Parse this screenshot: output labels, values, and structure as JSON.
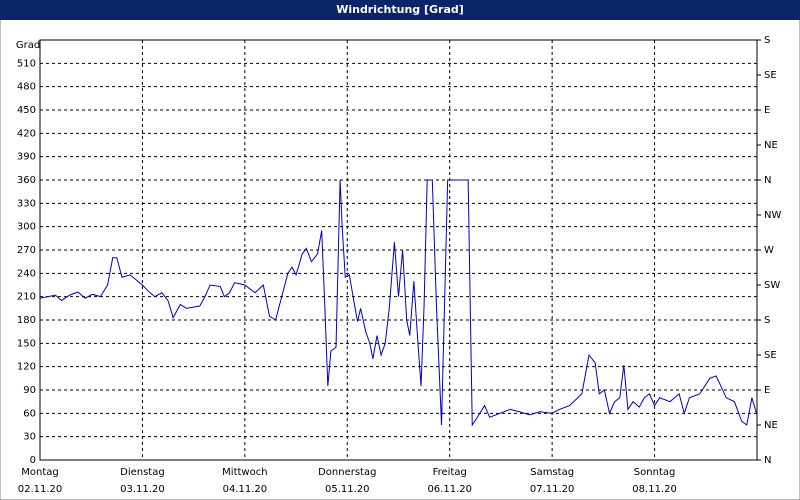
{
  "chart_data": {
    "type": "line",
    "title": "Windrichtung [Grad]",
    "y_label": "Grad",
    "xlim": [
      0,
      7
    ],
    "ylim": [
      0,
      540
    ],
    "y2lim": [
      0,
      540
    ],
    "grid": true,
    "xticks": [
      {
        "value": 0,
        "label": "Montag"
      },
      {
        "value": 1,
        "label": "Dienstag"
      },
      {
        "value": 2,
        "label": "Mittwoch"
      },
      {
        "value": 3,
        "label": "Donnerstag"
      },
      {
        "value": 4,
        "label": "Freitag"
      },
      {
        "value": 5,
        "label": "Samstag"
      },
      {
        "value": 6,
        "label": "Sonntag"
      }
    ],
    "xtick_dates": [
      "02.11.20",
      "03.11.20",
      "04.11.20",
      "05.11.20",
      "06.11.20",
      "07.11.20",
      "08.11.20"
    ],
    "yticks": [
      0,
      30,
      60,
      90,
      120,
      150,
      180,
      210,
      240,
      270,
      300,
      330,
      360,
      390,
      420,
      450,
      480,
      510
    ],
    "y2ticks": [
      {
        "value": 0,
        "label": "N"
      },
      {
        "value": 45,
        "label": "NE"
      },
      {
        "value": 90,
        "label": "E"
      },
      {
        "value": 135,
        "label": "SE"
      },
      {
        "value": 180,
        "label": "S"
      },
      {
        "value": 225,
        "label": "SW"
      },
      {
        "value": 270,
        "label": "W"
      },
      {
        "value": 315,
        "label": "NW"
      },
      {
        "value": 360,
        "label": "N"
      },
      {
        "value": 405,
        "label": "NE"
      },
      {
        "value": 450,
        "label": "E"
      },
      {
        "value": 495,
        "label": "SE"
      },
      {
        "value": 540,
        "label": "S"
      }
    ],
    "series": [
      {
        "color": "#0000c8",
        "x": [
          0,
          0.08,
          0.15,
          0.21,
          0.29,
          0.37,
          0.44,
          0.51,
          0.59,
          0.66,
          0.71,
          0.75,
          0.8,
          0.88,
          1.0,
          1.05,
          1.12,
          1.19,
          1.25,
          1.3,
          1.37,
          1.43,
          1.56,
          1.61,
          1.66,
          1.76,
          1.8,
          1.85,
          1.9,
          2.0,
          2.1,
          2.18,
          2.24,
          2.3,
          2.36,
          2.42,
          2.46,
          2.5,
          2.56,
          2.6,
          2.65,
          2.71,
          2.75,
          2.78,
          2.81,
          2.84,
          2.89,
          2.93,
          2.95,
          2.98,
          3.02,
          3.07,
          3.1,
          3.13,
          3.18,
          3.22,
          3.25,
          3.29,
          3.33,
          3.37,
          3.41,
          3.46,
          3.5,
          3.54,
          3.58,
          3.61,
          3.65,
          3.69,
          3.72,
          3.75,
          3.78,
          3.83,
          3.87,
          3.92,
          3.98,
          4.18,
          4.22,
          4.27,
          4.34,
          4.39,
          4.49,
          4.59,
          4.68,
          4.78,
          4.88,
          5.0,
          5.07,
          5.17,
          5.29,
          5.36,
          5.42,
          5.46,
          5.51,
          5.56,
          5.61,
          5.66,
          5.7,
          5.74,
          5.79,
          5.85,
          5.9,
          5.95,
          6.0,
          6.05,
          6.15,
          6.24,
          6.29,
          6.34,
          6.44,
          6.49,
          6.54,
          6.6,
          6.63,
          6.7,
          6.78,
          6.85,
          6.9,
          6.95,
          7.0
        ],
        "values": [
          208,
          210,
          212,
          205,
          212,
          216,
          208,
          213,
          210,
          225,
          260,
          260,
          235,
          238,
          225,
          218,
          210,
          215,
          205,
          183,
          200,
          195,
          198,
          210,
          225,
          223,
          210,
          215,
          228,
          225,
          215,
          225,
          185,
          180,
          210,
          240,
          248,
          238,
          265,
          272,
          255,
          265,
          295,
          200,
          95,
          140,
          145,
          360,
          300,
          235,
          238,
          200,
          178,
          195,
          165,
          150,
          130,
          160,
          135,
          150,
          195,
          280,
          210,
          270,
          180,
          160,
          230,
          150,
          95,
          200,
          360,
          360,
          200,
          45,
          360,
          360,
          45,
          55,
          70,
          55,
          60,
          65,
          62,
          58,
          62,
          60,
          65,
          70,
          85,
          135,
          125,
          85,
          90,
          60,
          75,
          80,
          122,
          65,
          75,
          68,
          80,
          85,
          70,
          80,
          75,
          85,
          60,
          80,
          85,
          95,
          105,
          108,
          100,
          80,
          75,
          50,
          45,
          80,
          58
        ]
      }
    ]
  }
}
